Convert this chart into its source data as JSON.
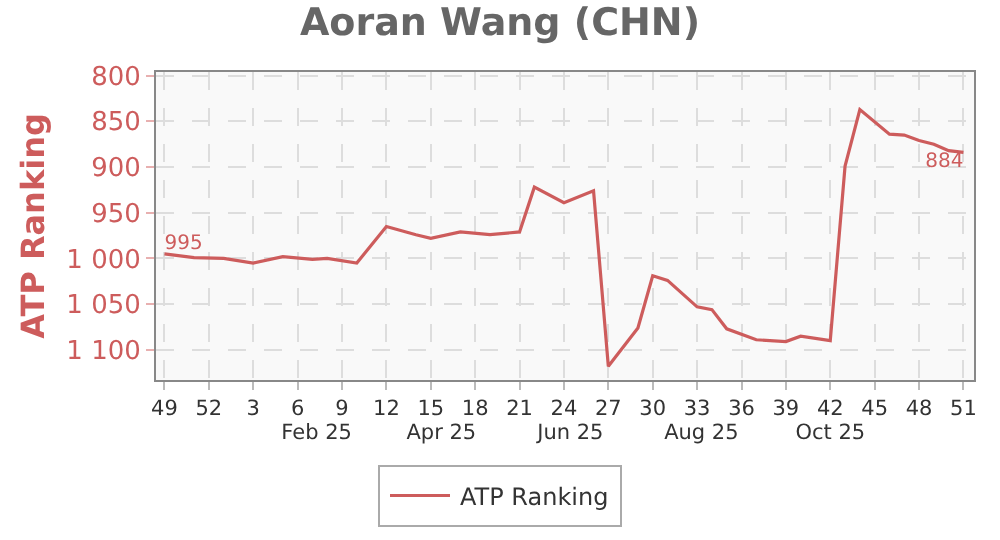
{
  "chart_data": {
    "type": "line",
    "title": "Aoran Wang (CHN)",
    "ylabel": "ATP Ranking",
    "x": [
      "2024-12-02",
      "2024-12-16",
      "2024-12-30",
      "2025-01-13",
      "2025-01-27",
      "2025-02-10",
      "2025-02-17",
      "2025-03-03",
      "2025-03-17",
      "2025-03-31",
      "2025-04-07",
      "2025-04-21",
      "2025-05-05",
      "2025-05-19",
      "2025-05-26",
      "2025-06-09",
      "2025-06-23",
      "2025-06-30",
      "2025-07-14",
      "2025-07-21",
      "2025-07-28",
      "2025-08-11",
      "2025-08-18",
      "2025-08-25",
      "2025-09-08",
      "2025-09-22",
      "2025-09-29",
      "2025-10-13",
      "2025-10-20",
      "2025-10-27",
      "2025-11-10",
      "2025-11-17",
      "2025-11-24",
      "2025-12-01",
      "2025-12-08",
      "2025-12-15"
    ],
    "series": [
      {
        "name": "ATP Ranking",
        "color": "#cd5c5c",
        "values": [
          995,
          999,
          1000,
          1005,
          998,
          1001,
          1000,
          1005,
          965,
          974,
          978,
          971,
          974,
          971,
          922,
          939,
          926,
          1118,
          1076,
          1019,
          1024,
          1053,
          1056,
          1077,
          1089,
          1091,
          1085,
          1090,
          899,
          837,
          864,
          865,
          871,
          875,
          882,
          884
        ],
        "value_labels": [
          "995",
          null,
          null,
          null,
          null,
          null,
          null,
          null,
          null,
          null,
          null,
          null,
          null,
          null,
          null,
          null,
          null,
          null,
          null,
          null,
          null,
          null,
          null,
          null,
          null,
          null,
          null,
          null,
          null,
          null,
          null,
          null,
          null,
          null,
          null,
          "884"
        ]
      }
    ],
    "xlim": [
      "2024-11-28",
      "2025-12-20"
    ],
    "xticks": [
      {
        "value": "2024-12-02",
        "label": "49"
      },
      {
        "value": "2024-12-23",
        "label": "52"
      },
      {
        "value": "2025-01-13",
        "label": "3"
      },
      {
        "value": "2025-02-03",
        "label": "6"
      },
      {
        "value": "2025-02-24",
        "label": "9"
      },
      {
        "value": "2025-03-17",
        "label": "12"
      },
      {
        "value": "2025-04-07",
        "label": "15"
      },
      {
        "value": "2025-04-28",
        "label": "18"
      },
      {
        "value": "2025-05-19",
        "label": "21"
      },
      {
        "value": "2025-06-09",
        "label": "24"
      },
      {
        "value": "2025-06-30",
        "label": "27"
      },
      {
        "value": "2025-07-21",
        "label": "30"
      },
      {
        "value": "2025-08-11",
        "label": "33"
      },
      {
        "value": "2025-09-01",
        "label": "36"
      },
      {
        "value": "2025-09-22",
        "label": "39"
      },
      {
        "value": "2025-10-13",
        "label": "42"
      },
      {
        "value": "2025-11-03",
        "label": "45"
      },
      {
        "value": "2025-11-24",
        "label": "48"
      },
      {
        "value": "2025-12-15",
        "label": "51"
      }
    ],
    "x2lim": [
      "2024-11-28",
      "2025-12-20"
    ],
    "x2ticks": [
      {
        "value": "2025-02-12",
        "label": "Feb 25"
      },
      {
        "value": "2025-04-12",
        "label": "Apr 25"
      },
      {
        "value": "2025-06-12",
        "label": "Jun 25"
      },
      {
        "value": "2025-08-13",
        "label": "Aug 25"
      },
      {
        "value": "2025-10-13",
        "label": "Oct 25"
      }
    ],
    "ylim": [
      1133,
      796
    ],
    "yticks": [
      800,
      850,
      900,
      950,
      {
        "value": 1000,
        "label": "1 000"
      },
      {
        "value": 1050,
        "label": "1 050"
      },
      {
        "value": 1100,
        "label": "1 100"
      }
    ],
    "grid": true,
    "legend": "bottom",
    "marker": "none",
    "line_style": "solid"
  }
}
